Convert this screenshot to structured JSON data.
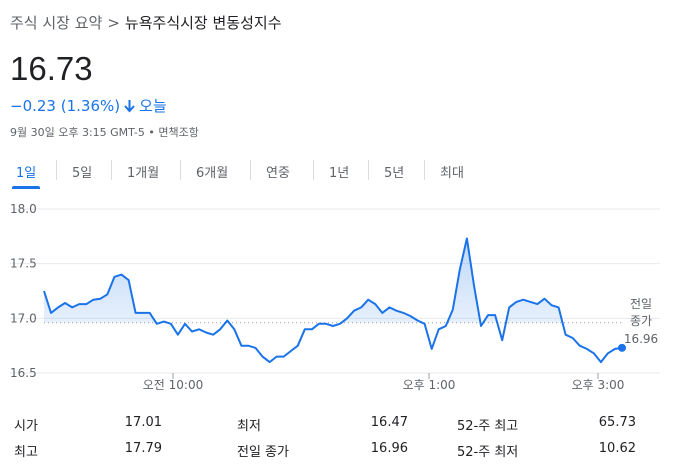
{
  "breadcrumb": {
    "parent": "주식 시장 요약",
    "separator": ">",
    "current": "뉴욕주식시장 변동성지수"
  },
  "price": "16.73",
  "change": {
    "text": "−0.23 (1.36%)",
    "period": "오늘",
    "color": "#1a73e8"
  },
  "meta": "9월 30일 오후 3:15 GMT-5 • 면책조항",
  "tabs": [
    "1일",
    "5일",
    "1개월",
    "6개월",
    "연중",
    "1년",
    "5년",
    "최대"
  ],
  "chart_data": {
    "type": "line",
    "y_ticks": [
      "18.0",
      "17.5",
      "17.0",
      "16.5"
    ],
    "ylim": [
      16.5,
      18.0
    ],
    "x_ticks": [
      "오전 10:00",
      "오후 1:00",
      "오후 3:00"
    ],
    "previous_close_label": [
      "전일",
      "종가"
    ],
    "previous_close_value": "16.96",
    "previous_close": 16.96,
    "line_color": "#1a73e8",
    "values": [
      17.25,
      17.05,
      17.1,
      17.14,
      17.1,
      17.13,
      17.13,
      17.17,
      17.18,
      17.22,
      17.38,
      17.4,
      17.35,
      17.05,
      17.05,
      17.05,
      16.95,
      16.97,
      16.95,
      16.85,
      16.95,
      16.88,
      16.9,
      16.87,
      16.85,
      16.9,
      16.98,
      16.9,
      16.75,
      16.75,
      16.73,
      16.65,
      16.6,
      16.65,
      16.65,
      16.7,
      16.75,
      16.9,
      16.9,
      16.95,
      16.95,
      16.93,
      16.95,
      17.0,
      17.07,
      17.1,
      17.17,
      17.13,
      17.05,
      17.1,
      17.07,
      17.05,
      17.02,
      16.98,
      16.95,
      16.72,
      16.9,
      16.93,
      17.08,
      17.45,
      17.73,
      17.3,
      16.93,
      17.03,
      17.03,
      16.8,
      17.1,
      17.15,
      17.17,
      17.15,
      17.13,
      17.18,
      17.12,
      17.1,
      16.85,
      16.82,
      16.75,
      16.72,
      16.68,
      16.6,
      16.68,
      16.72,
      16.73
    ]
  },
  "stats": [
    [
      {
        "label": "시가",
        "value": "17.01"
      },
      {
        "label": "최저",
        "value": "16.47"
      },
      {
        "label": "52-주 최고",
        "value": "65.73"
      }
    ],
    [
      {
        "label": "최고",
        "value": "17.79"
      },
      {
        "label": "전일 종가",
        "value": "16.96"
      },
      {
        "label": "52-주 최저",
        "value": "10.62"
      }
    ]
  ]
}
